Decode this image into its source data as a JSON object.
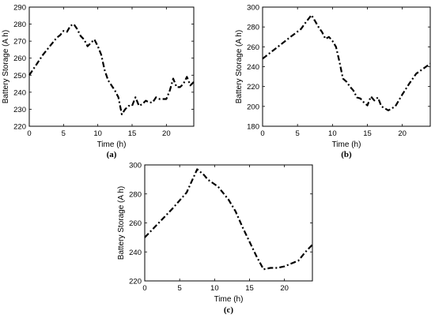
{
  "chart_data": [
    {
      "id": "a",
      "type": "line",
      "caption": "(a)",
      "xlabel": "Time (h)",
      "ylabel": "Battery Storage (A h)",
      "xlim": [
        0,
        24
      ],
      "ylim": [
        220,
        290
      ],
      "xticks": [
        0,
        5,
        10,
        15,
        20
      ],
      "yticks": [
        220,
        230,
        240,
        250,
        260,
        270,
        280,
        290
      ],
      "series": [
        {
          "x": [
            0,
            1,
            2,
            3,
            4,
            4.5,
            5,
            5.5,
            6,
            6.5,
            7,
            7.5,
            8,
            8.5,
            9,
            9.5,
            10,
            10.5,
            11,
            11.5,
            12,
            12.5,
            13,
            13.5,
            14,
            14.5,
            15,
            15.5,
            16,
            16.5,
            17,
            17.5,
            18,
            18.5,
            19,
            19.5,
            20,
            20.5,
            21,
            21.5,
            22,
            22.5,
            23,
            23.5,
            24
          ],
          "y": [
            250,
            256,
            262,
            267,
            272,
            273.5,
            276,
            275.5,
            279,
            280,
            277,
            273,
            271,
            267,
            269,
            271,
            267,
            262,
            253,
            247,
            244,
            241,
            237,
            227,
            230,
            232,
            232,
            237,
            232,
            233,
            235,
            234,
            234,
            237,
            236,
            236,
            236,
            241,
            248,
            243,
            243,
            245,
            249,
            244,
            246
          ]
        }
      ]
    },
    {
      "id": "b",
      "type": "line",
      "caption": "(b)",
      "xlabel": "Time (h)",
      "ylabel": "Battery Storage (A h)",
      "xlim": [
        0,
        24
      ],
      "ylim": [
        180,
        300
      ],
      "xticks": [
        0,
        5,
        10,
        15,
        20
      ],
      "yticks": [
        180,
        200,
        220,
        240,
        260,
        280,
        300
      ],
      "series": [
        {
          "x": [
            0,
            2,
            4,
            5.5,
            6,
            7,
            7.5,
            8,
            8.5,
            9,
            9.5,
            10,
            10.5,
            11,
            11.5,
            12,
            12.5,
            13,
            13.5,
            14,
            14.5,
            15,
            15.5,
            16,
            16.5,
            17,
            17.5,
            18,
            18.5,
            19,
            20,
            21,
            22,
            23,
            24
          ],
          "y": [
            248,
            259,
            270,
            278,
            283,
            292,
            286,
            280,
            275,
            268,
            270,
            266,
            260,
            245,
            228,
            225,
            220,
            216,
            209,
            208,
            204,
            201,
            210,
            206,
            209,
            200,
            198,
            196,
            198,
            200,
            212,
            223,
            233,
            238,
            243
          ]
        }
      ]
    },
    {
      "id": "c",
      "type": "line",
      "caption": "(c)",
      "xlabel": "Time (h)",
      "ylabel": "Battery Storage (A h)",
      "xlim": [
        0,
        24
      ],
      "ylim": [
        220,
        300
      ],
      "xticks": [
        0,
        5,
        10,
        15,
        20
      ],
      "yticks": [
        220,
        240,
        260,
        280,
        300
      ],
      "series": [
        {
          "x": [
            0,
            2,
            4,
            6,
            7.5,
            8.5,
            9,
            10.5,
            12,
            13,
            14,
            15,
            16,
            17,
            18,
            19,
            20,
            21,
            22,
            23,
            24
          ],
          "y": [
            250,
            260,
            270,
            281,
            297,
            293,
            290,
            285,
            276,
            268,
            257,
            247,
            237,
            228,
            229,
            229,
            230,
            232,
            234,
            240,
            245
          ]
        }
      ]
    }
  ]
}
